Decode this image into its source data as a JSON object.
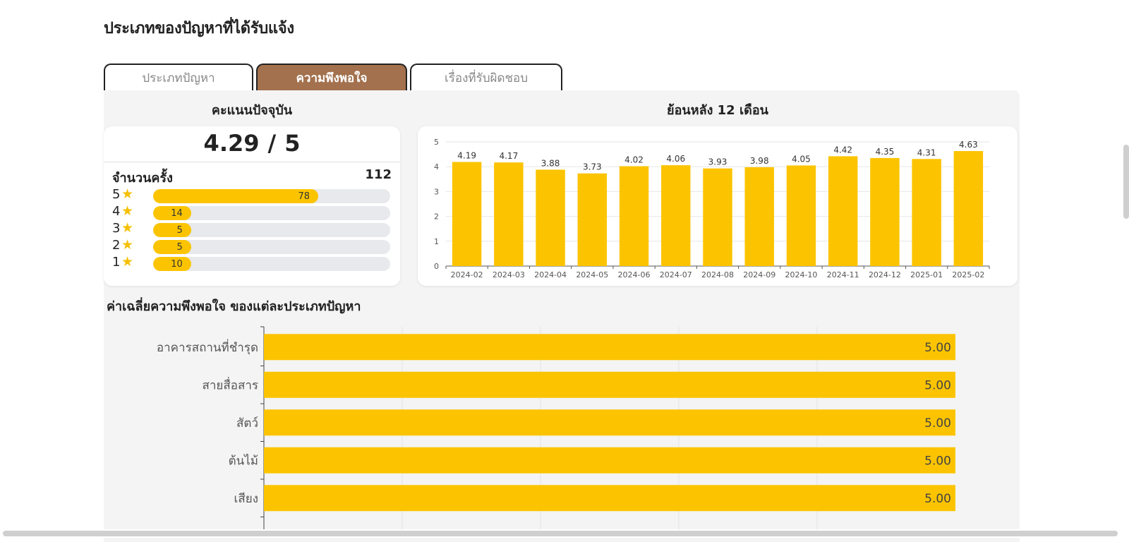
{
  "page": {
    "title": "ประเภทของปัญหาที่ได้รับแจ้ง"
  },
  "tabs": [
    {
      "label": "ประเภทปัญหา",
      "active": false
    },
    {
      "label": "ความพึงพอใจ",
      "active": true
    },
    {
      "label": "เรื่องที่รับผิดชอบ",
      "active": false
    }
  ],
  "current_score": {
    "heading": "คะแนนปัจจุบัน",
    "score": "4.29",
    "separator": "/",
    "max": "5",
    "count_label": "จำนวนครั้ง",
    "count_value": "112",
    "ratings": [
      {
        "stars": "5",
        "count": 78
      },
      {
        "stars": "4",
        "count": 14
      },
      {
        "stars": "3",
        "count": 5
      },
      {
        "stars": "2",
        "count": 5
      },
      {
        "stars": "1",
        "count": 10
      }
    ]
  },
  "colors": {
    "accent": "#fcc400",
    "tab_active": "#a3714e",
    "panel_bg": "#f4f4f4"
  },
  "chart_data": [
    {
      "type": "bar",
      "title": "ย้อนหลัง 12 เดือน",
      "categories": [
        "2024-02",
        "2024-03",
        "2024-04",
        "2024-05",
        "2024-06",
        "2024-07",
        "2024-08",
        "2024-09",
        "2024-10",
        "2024-11",
        "2024-12",
        "2025-01",
        "2025-02"
      ],
      "values": [
        4.19,
        4.17,
        3.88,
        3.73,
        4.02,
        4.06,
        3.93,
        3.98,
        4.05,
        4.42,
        4.35,
        4.31,
        4.63
      ],
      "value_labels": [
        "4.19",
        "4.17",
        "3.88",
        "3.73",
        "4.02",
        "4.06",
        "3.93",
        "3.98",
        "4.05",
        "4.42",
        "4.35",
        "4.31",
        "4.63"
      ],
      "yticks": [
        "0",
        "1",
        "2",
        "3",
        "4",
        "5"
      ],
      "ylim": [
        0,
        5
      ],
      "grid": true
    },
    {
      "type": "bar",
      "orientation": "horizontal",
      "title": "ค่าเฉลี่ยความพึงพอใจ ของแต่ละประเภทปัญหา",
      "categories": [
        "อาคารสถานที่ชำรุด",
        "สายสื่อสาร",
        "สัตว์",
        "ต้นไม้",
        "เสียง"
      ],
      "values": [
        5.0,
        5.0,
        5.0,
        5.0,
        5.0
      ],
      "value_labels": [
        "5.00",
        "5.00",
        "5.00",
        "5.00",
        "5.00"
      ],
      "xlim": [
        0,
        5
      ],
      "grid": true
    }
  ]
}
